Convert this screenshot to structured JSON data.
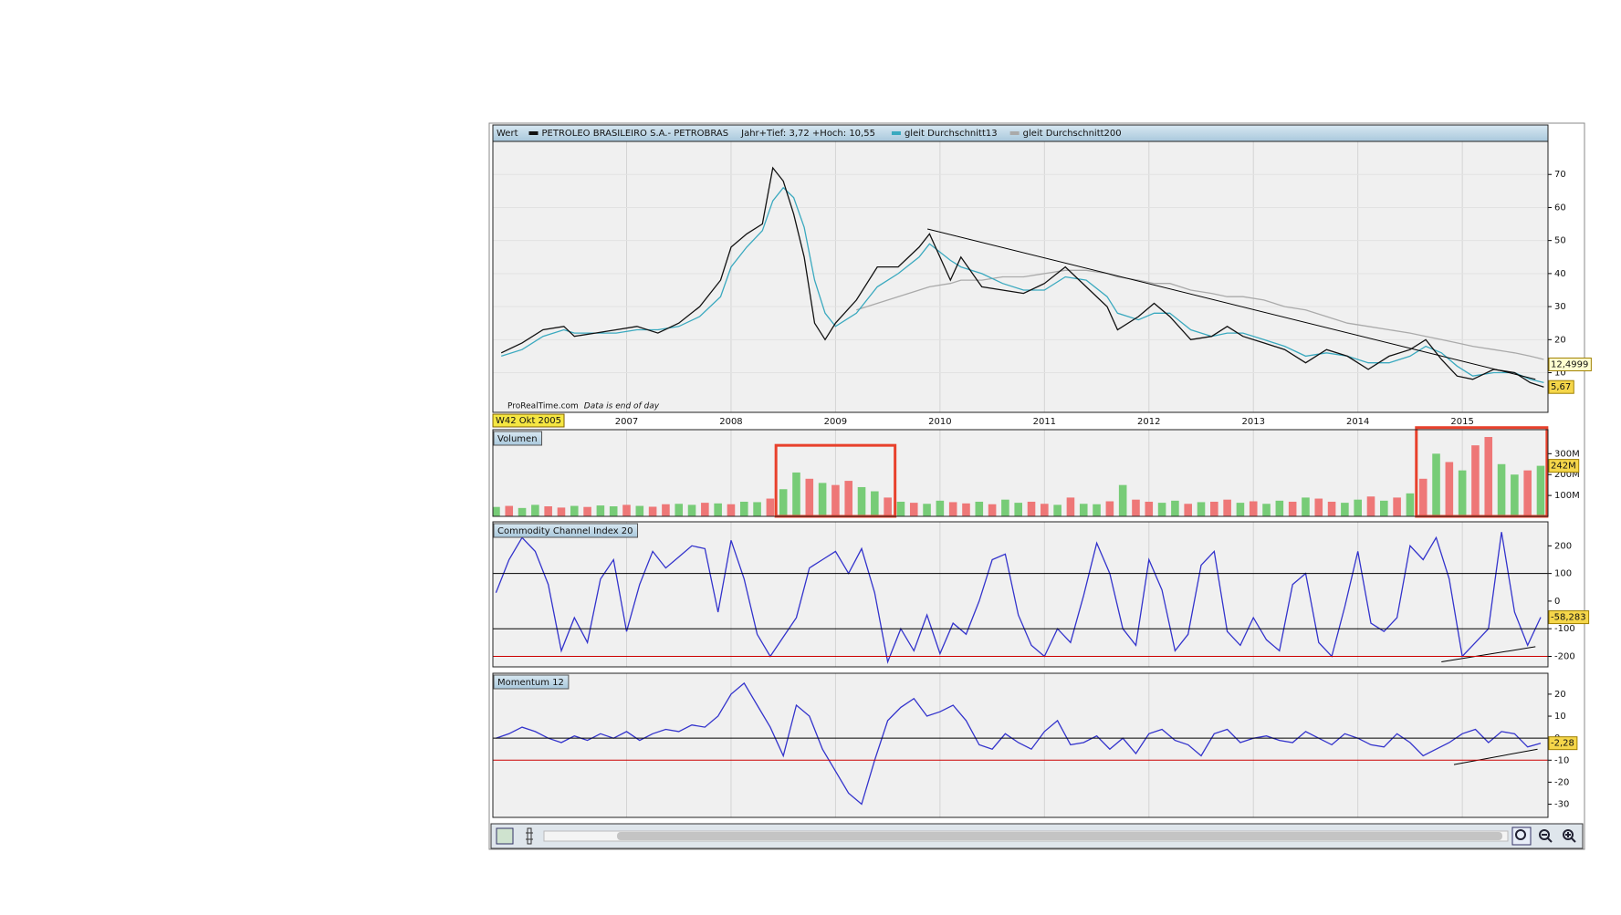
{
  "chart_data": [
    {
      "type": "line",
      "header_label": "Wert",
      "range_note": "Jahr+Tief: 3,72 +Hoch: 10,55",
      "source_note": "ProRealTime.com",
      "source_note_2": "Data is end of day",
      "cursor_label": "W42 Okt 2005",
      "x": [
        2005.8,
        2006.0,
        2006.2,
        2006.4,
        2006.5,
        2006.7,
        2006.9,
        2007.1,
        2007.3,
        2007.5,
        2007.7,
        2007.9,
        2008.0,
        2008.15,
        2008.3,
        2008.4,
        2008.5,
        2008.6,
        2008.7,
        2008.8,
        2008.9,
        2009.0,
        2009.2,
        2009.4,
        2009.6,
        2009.8,
        2009.9,
        2010.1,
        2010.2,
        2010.4,
        2010.6,
        2010.8,
        2011.0,
        2011.2,
        2011.4,
        2011.6,
        2011.7,
        2011.9,
        2012.05,
        2012.2,
        2012.4,
        2012.6,
        2012.75,
        2012.9,
        2013.1,
        2013.3,
        2013.5,
        2013.7,
        2013.9,
        2014.1,
        2014.3,
        2014.5,
        2014.65,
        2014.8,
        2014.95,
        2015.1,
        2015.3,
        2015.5,
        2015.65,
        2015.78
      ],
      "series": [
        {
          "name": "PETROLEO BRASILEIRO S.A.- PETROBRAS",
          "color": "#111111",
          "values": [
            16,
            19,
            23,
            24,
            21,
            22,
            23,
            24,
            22,
            25,
            30,
            38,
            48,
            52,
            55,
            72,
            68,
            58,
            45,
            25,
            20,
            25,
            32,
            42,
            42,
            48,
            52,
            38,
            45,
            36,
            35,
            34,
            37,
            42,
            36,
            30,
            23,
            27,
            31,
            27,
            20,
            21,
            24,
            21,
            19,
            17,
            13,
            17,
            15,
            11,
            15,
            17,
            20,
            14,
            9,
            8,
            11,
            10,
            7,
            5.67
          ]
        },
        {
          "name": "gleit Durchschnitt13",
          "color": "#3aa9bf",
          "values": [
            15,
            17,
            21,
            23,
            22,
            22,
            22,
            23,
            23,
            24,
            27,
            33,
            42,
            48,
            53,
            62,
            66,
            63,
            54,
            38,
            28,
            24,
            28,
            36,
            40,
            45,
            49,
            44,
            42,
            40,
            37,
            35,
            35,
            39,
            38,
            33,
            28,
            26,
            28,
            28,
            23,
            21,
            22,
            22,
            20,
            18,
            15,
            16,
            15,
            13,
            13,
            15,
            18,
            16,
            12,
            9,
            10,
            10,
            8,
            7
          ]
        },
        {
          "name": "gleit Durchschnitt200",
          "color": "#aaaaaa",
          "values": [
            null,
            null,
            null,
            null,
            null,
            null,
            null,
            null,
            null,
            null,
            null,
            null,
            null,
            null,
            null,
            null,
            null,
            null,
            null,
            null,
            null,
            null,
            29,
            31,
            33,
            35,
            36,
            37,
            38,
            38,
            39,
            39,
            40,
            41,
            41,
            40,
            39,
            38,
            37,
            37,
            35,
            34,
            33,
            33,
            32,
            30,
            29,
            27,
            25,
            24,
            23,
            22,
            21,
            20,
            19,
            18,
            17,
            16,
            15,
            14
          ]
        }
      ],
      "xlim": [
        2005.72,
        2015.82
      ],
      "xticks": [
        2007,
        2008,
        2009,
        2010,
        2011,
        2012,
        2013,
        2014,
        2015
      ],
      "ylim": [
        -2,
        80
      ],
      "yticks": [
        10,
        20,
        30,
        40,
        50,
        60,
        70
      ],
      "grid": true,
      "trendline": {
        "x": [
          2009.88,
          2015.7
        ],
        "y": [
          53.5,
          8
        ],
        "color": "#000000"
      },
      "current_labels": [
        {
          "value": 12.4999,
          "label": "12,4999"
        },
        {
          "value": 5.67,
          "label": "5,67"
        }
      ]
    },
    {
      "type": "bar",
      "title": "Volumen",
      "x": [
        2005.75,
        2005.875,
        2006,
        2006.125,
        2006.25,
        2006.375,
        2006.5,
        2006.625,
        2006.75,
        2006.875,
        2007,
        2007.125,
        2007.25,
        2007.375,
        2007.5,
        2007.625,
        2007.75,
        2007.875,
        2008,
        2008.125,
        2008.25,
        2008.375,
        2008.5,
        2008.625,
        2008.75,
        2008.875,
        2009,
        2009.125,
        2009.25,
        2009.375,
        2009.5,
        2009.625,
        2009.75,
        2009.875,
        2010,
        2010.125,
        2010.25,
        2010.375,
        2010.5,
        2010.625,
        2010.75,
        2010.875,
        2011,
        2011.125,
        2011.25,
        2011.375,
        2011.5,
        2011.625,
        2011.75,
        2011.875,
        2012,
        2012.125,
        2012.25,
        2012.375,
        2012.5,
        2012.625,
        2012.75,
        2012.875,
        2013,
        2013.125,
        2013.25,
        2013.375,
        2013.5,
        2013.625,
        2013.75,
        2013.875,
        2014,
        2014.125,
        2014.25,
        2014.375,
        2014.5,
        2014.625,
        2014.75,
        2014.875,
        2015,
        2015.125,
        2015.25,
        2015.375,
        2015.5,
        2015.625,
        2015.75
      ],
      "values": [
        45,
        50,
        40,
        55,
        48,
        42,
        50,
        45,
        52,
        48,
        55,
        50,
        46,
        58,
        60,
        55,
        65,
        62,
        58,
        70,
        68,
        85,
        130,
        210,
        180,
        160,
        150,
        170,
        140,
        120,
        90,
        70,
        65,
        60,
        75,
        68,
        62,
        70,
        58,
        80,
        65,
        70,
        60,
        55,
        90,
        60,
        58,
        72,
        150,
        80,
        70,
        65,
        75,
        60,
        68,
        70,
        80,
        65,
        72,
        60,
        75,
        70,
        90,
        85,
        70,
        65,
        80,
        95,
        75,
        90,
        110,
        180,
        300,
        260,
        220,
        340,
        380,
        250,
        200,
        220,
        242
      ],
      "colors": [
        "#77cc77",
        "#ee7777",
        "#77cc77",
        "#77cc77",
        "#ee7777",
        "#ee7777",
        "#77cc77",
        "#ee7777",
        "#77cc77",
        "#77cc77",
        "#ee7777",
        "#77cc77",
        "#ee7777",
        "#ee7777",
        "#77cc77",
        "#77cc77",
        "#ee7777",
        "#77cc77",
        "#ee7777",
        "#77cc77",
        "#77cc77",
        "#ee7777",
        "#77cc77",
        "#77cc77",
        "#ee7777",
        "#77cc77",
        "#ee7777",
        "#ee7777",
        "#77cc77",
        "#77cc77",
        "#ee7777",
        "#77cc77",
        "#ee7777",
        "#77cc77",
        "#77cc77",
        "#ee7777",
        "#ee7777",
        "#77cc77",
        "#ee7777",
        "#77cc77",
        "#77cc77",
        "#ee7777",
        "#ee7777",
        "#77cc77",
        "#ee7777",
        "#77cc77",
        "#77cc77",
        "#ee7777",
        "#77cc77",
        "#ee7777",
        "#ee7777",
        "#77cc77",
        "#77cc77",
        "#ee7777",
        "#77cc77",
        "#ee7777",
        "#ee7777",
        "#77cc77",
        "#ee7777",
        "#77cc77",
        "#77cc77",
        "#ee7777",
        "#77cc77",
        "#ee7777",
        "#ee7777",
        "#77cc77",
        "#77cc77",
        "#ee7777",
        "#77cc77",
        "#ee7777",
        "#77cc77",
        "#ee7777",
        "#77cc77",
        "#ee7777",
        "#77cc77",
        "#ee7777",
        "#ee7777",
        "#77cc77",
        "#77cc77",
        "#ee7777",
        "#77cc77"
      ],
      "xlim": [
        2005.72,
        2015.82
      ],
      "ylim": [
        0,
        415
      ],
      "yticks": [
        {
          "value": 100,
          "label": "100M"
        },
        {
          "value": 200,
          "label": "200M"
        },
        {
          "value": 300,
          "label": "300M"
        }
      ],
      "highlight_boxes": [
        {
          "x": [
            2008.43,
            2009.57
          ],
          "y": [
            0,
            340
          ],
          "color": "#e8412c"
        },
        {
          "x": [
            2014.56,
            2015.81
          ],
          "y": [
            0,
            425
          ],
          "color": "#e8412c"
        }
      ],
      "current_labels": [
        {
          "value": 242,
          "label": "242M"
        }
      ]
    },
    {
      "type": "line",
      "title": "Commodity Channel Index 20",
      "color": "#3333cc",
      "x": [
        2005.75,
        2005.875,
        2006,
        2006.125,
        2006.25,
        2006.375,
        2006.5,
        2006.625,
        2006.75,
        2006.875,
        2007,
        2007.125,
        2007.25,
        2007.375,
        2007.5,
        2007.625,
        2007.75,
        2007.875,
        2008,
        2008.125,
        2008.25,
        2008.375,
        2008.5,
        2008.625,
        2008.75,
        2008.875,
        2009,
        2009.125,
        2009.25,
        2009.375,
        2009.5,
        2009.625,
        2009.75,
        2009.875,
        2010,
        2010.125,
        2010.25,
        2010.375,
        2010.5,
        2010.625,
        2010.75,
        2010.875,
        2011,
        2011.125,
        2011.25,
        2011.375,
        2011.5,
        2011.625,
        2011.75,
        2011.875,
        2012,
        2012.125,
        2012.25,
        2012.375,
        2012.5,
        2012.625,
        2012.75,
        2012.875,
        2013,
        2013.125,
        2013.25,
        2013.375,
        2013.5,
        2013.625,
        2013.75,
        2013.875,
        2014,
        2014.125,
        2014.25,
        2014.375,
        2014.5,
        2014.625,
        2014.75,
        2014.875,
        2015,
        2015.125,
        2015.25,
        2015.375,
        2015.5,
        2015.625,
        2015.75
      ],
      "values": [
        30,
        150,
        230,
        180,
        60,
        -180,
        -60,
        -150,
        80,
        150,
        -110,
        60,
        180,
        120,
        160,
        200,
        190,
        -40,
        220,
        80,
        -120,
        -200,
        -130,
        -60,
        120,
        150,
        180,
        100,
        190,
        30,
        -220,
        -100,
        -180,
        -50,
        -190,
        -80,
        -120,
        0,
        150,
        170,
        -50,
        -160,
        -200,
        -100,
        -150,
        20,
        210,
        100,
        -100,
        -160,
        150,
        40,
        -180,
        -120,
        130,
        180,
        -110,
        -160,
        -60,
        -140,
        -180,
        60,
        100,
        -150,
        -200,
        -20,
        180,
        -80,
        -110,
        -60,
        200,
        150,
        230,
        80,
        -200,
        -150,
        -100,
        250,
        -40,
        -160,
        -58.283
      ],
      "xlim": [
        2005.72,
        2015.82
      ],
      "ylim": [
        -238,
        287
      ],
      "yticks": [
        200,
        100,
        0,
        -100,
        -200
      ],
      "hlines": [
        {
          "value": 100,
          "color": "#000000"
        },
        {
          "value": -100,
          "color": "#000000"
        },
        {
          "value": -200,
          "color": "#cc0000"
        }
      ],
      "trendline": {
        "x": [
          2014.8,
          2015.7
        ],
        "y": [
          -220,
          -165
        ],
        "color": "#000000"
      },
      "current_labels": [
        {
          "value": -58.283,
          "label": "-58,283"
        }
      ]
    },
    {
      "type": "line",
      "title": "Momentum 12",
      "color": "#3333cc",
      "x": [
        2005.75,
        2005.875,
        2006,
        2006.125,
        2006.25,
        2006.375,
        2006.5,
        2006.625,
        2006.75,
        2006.875,
        2007,
        2007.125,
        2007.25,
        2007.375,
        2007.5,
        2007.625,
        2007.75,
        2007.875,
        2008,
        2008.125,
        2008.25,
        2008.375,
        2008.5,
        2008.625,
        2008.75,
        2008.875,
        2009,
        2009.125,
        2009.25,
        2009.375,
        2009.5,
        2009.625,
        2009.75,
        2009.875,
        2010,
        2010.125,
        2010.25,
        2010.375,
        2010.5,
        2010.625,
        2010.75,
        2010.875,
        2011,
        2011.125,
        2011.25,
        2011.375,
        2011.5,
        2011.625,
        2011.75,
        2011.875,
        2012,
        2012.125,
        2012.25,
        2012.375,
        2012.5,
        2012.625,
        2012.75,
        2012.875,
        2013,
        2013.125,
        2013.25,
        2013.375,
        2013.5,
        2013.625,
        2013.75,
        2013.875,
        2014,
        2014.125,
        2014.25,
        2014.375,
        2014.5,
        2014.625,
        2014.75,
        2014.875,
        2015,
        2015.125,
        2015.25,
        2015.375,
        2015.5,
        2015.625,
        2015.75
      ],
      "values": [
        0,
        2,
        5,
        3,
        0,
        -2,
        1,
        -1,
        2,
        0,
        3,
        -1,
        2,
        4,
        3,
        6,
        5,
        10,
        20,
        25,
        15,
        5,
        -8,
        15,
        10,
        -5,
        -15,
        -25,
        -30,
        -10,
        8,
        14,
        18,
        10,
        12,
        15,
        8,
        -3,
        -5,
        2,
        -2,
        -5,
        3,
        8,
        -3,
        -2,
        1,
        -5,
        0,
        -7,
        2,
        4,
        -1,
        -3,
        -8,
        2,
        4,
        -2,
        0,
        1,
        -1,
        -2,
        3,
        0,
        -3,
        2,
        0,
        -3,
        -4,
        2,
        -2,
        -8,
        -5,
        -2,
        2,
        4,
        -2,
        3,
        2,
        -4,
        -2.28
      ],
      "xlim": [
        2005.72,
        2015.82
      ],
      "ylim": [
        -36,
        29.5
      ],
      "yticks": [
        20,
        10,
        0,
        -10,
        -20,
        -30
      ],
      "hlines": [
        {
          "value": 0,
          "color": "#000000"
        },
        {
          "value": -10,
          "color": "#cc0000"
        }
      ],
      "trendline": {
        "x": [
          2014.92,
          2015.72
        ],
        "y": [
          -12,
          -5
        ],
        "color": "#000000"
      },
      "current_labels": [
        {
          "value": -2.28,
          "label": "-2,28"
        }
      ]
    }
  ]
}
